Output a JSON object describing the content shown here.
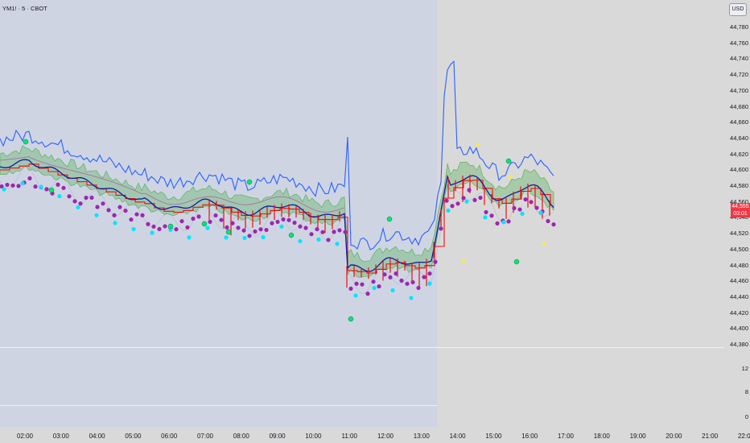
{
  "symbol_title": "YM1! · 5 · CBOT",
  "currency_button": "USD",
  "price_badge": {
    "price": "44,555",
    "countdown": "03:01"
  },
  "price_axis": [
    "44,780",
    "44,760",
    "44,740",
    "44,720",
    "44,700",
    "44,680",
    "44,660",
    "44,640",
    "44,620",
    "44,600",
    "44,580",
    "44,560",
    "44,540",
    "44,520",
    "44,500",
    "44,480",
    "44,460",
    "44,440",
    "44,420",
    "44,400",
    "44,380"
  ],
  "volume_axis": [
    "12",
    "8",
    "0"
  ],
  "time_axis": [
    "02:00",
    "03:00",
    "04:00",
    "05:00",
    "06:00",
    "07:00",
    "08:00",
    "09:00",
    "10:00",
    "11:00",
    "12:00",
    "13:00",
    "14:00",
    "15:00",
    "16:00",
    "17:00",
    "18:00",
    "19:00",
    "20:00",
    "21:00",
    "22:00"
  ],
  "colors": {
    "session_background": "#cfd4e3",
    "blue_line": "#2962ff",
    "red_line": "#f20c0c",
    "navy_line": "#0d1aa8",
    "magenta_line": "#e040c8",
    "green_cloud": "#4caf50",
    "purple_dots": "#9c27b0",
    "cyan_dots": "#00e5ff",
    "bright_green_dots": "#00e676",
    "yellow_dots": "#ffeb3b",
    "price_badge": "#f23645"
  }
}
